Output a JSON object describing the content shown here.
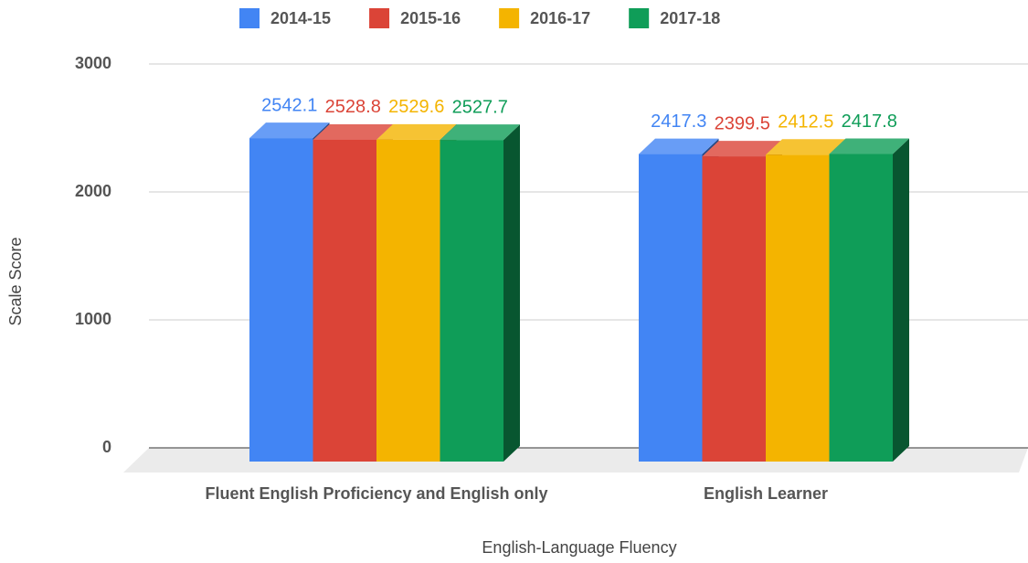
{
  "chart_data": {
    "type": "bar3d",
    "x_label": "English-Language Fluency",
    "y_label": "Scale Score",
    "categories": [
      "Fluent English Proficiency and English only",
      "English Learner"
    ],
    "series": [
      {
        "name": "2014-15",
        "color": "#4285f4",
        "values": [
          2542.1,
          2417.3
        ]
      },
      {
        "name": "2015-16",
        "color": "#db4437",
        "values": [
          2528.8,
          2399.5
        ]
      },
      {
        "name": "2016-17",
        "color": "#f4b400",
        "values": [
          2529.6,
          2412.5
        ]
      },
      {
        "name": "2017-18",
        "color": "#0f9d58",
        "values": [
          2527.7,
          2417.8
        ]
      }
    ],
    "ylim": [
      0,
      3000
    ],
    "yticks": [
      0,
      1000,
      2000,
      3000
    ],
    "grid": true,
    "legend": "top"
  }
}
